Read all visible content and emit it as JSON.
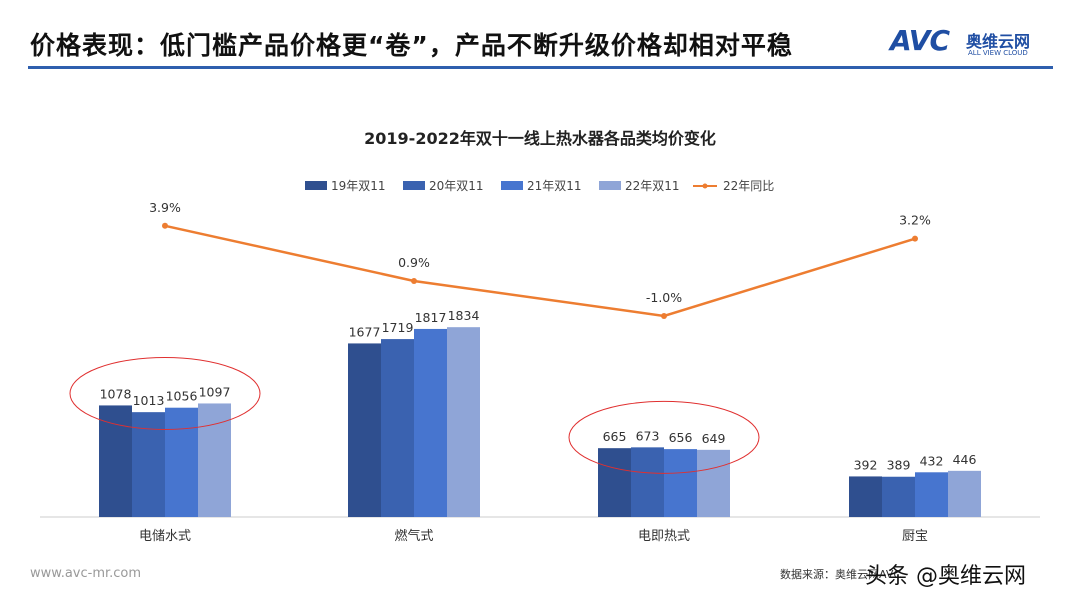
{
  "header": {
    "title": "价格表现：低门槛产品价格更“卷”，产品不断升级价格却相对平稳",
    "logo_big": "AVC",
    "logo_cn": "奥维云网",
    "logo_en": "ALL VIEW CLOUD"
  },
  "footer": {
    "site": "www.avc-mr.com",
    "source": "数据来源：奥维云网AVC",
    "watermark": "头条 @奥维云网"
  },
  "colors": {
    "s1": "#2f4f8f",
    "s2": "#3a62b0",
    "s3": "#4775cf",
    "s4": "#8fa5d7",
    "line": "#ed7d31",
    "accent": "#2e5fae",
    "highlight": "#e03030"
  },
  "chart_data": {
    "type": "bar",
    "title": "2019-2022年双十一线上热水器各品类均价变化",
    "categories": [
      "电储水式",
      "燃气式",
      "电即热式",
      "厨宝"
    ],
    "series": [
      {
        "name": "19年双11",
        "values": [
          1078,
          1677,
          665,
          392
        ]
      },
      {
        "name": "20年双11",
        "values": [
          1013,
          1719,
          673,
          389
        ]
      },
      {
        "name": "21年双11",
        "values": [
          1056,
          1817,
          656,
          432
        ]
      },
      {
        "name": "22年双11",
        "values": [
          1097,
          1834,
          649,
          446
        ]
      }
    ],
    "line_series": {
      "name": "22年同比",
      "type": "line",
      "values": [
        3.9,
        0.9,
        -1.0,
        3.2
      ],
      "labels": [
        "3.9%",
        "0.9%",
        "-1.0%",
        "3.2%"
      ]
    },
    "ylim": [
      0,
      2000
    ],
    "grid": false,
    "legend": "top",
    "highlighted_categories": [
      "电储水式",
      "电即热式"
    ]
  }
}
